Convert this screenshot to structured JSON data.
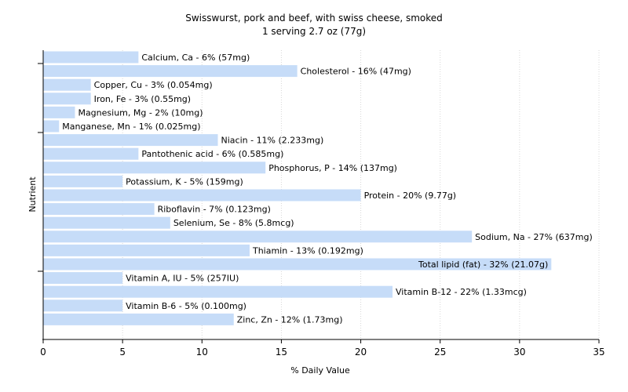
{
  "chart_data": {
    "type": "bar",
    "orientation": "horizontal",
    "title": "Swisswurst, pork and beef, with swiss cheese, smoked",
    "subtitle": "1 serving 2.7 oz (77g)",
    "xlabel": "% Daily Value",
    "ylabel": "Nutrient",
    "xlim": [
      0,
      35
    ],
    "xticks": [
      0,
      5,
      10,
      15,
      20,
      25,
      30,
      35
    ],
    "grid": true,
    "bar_color": "#c6dcf8",
    "categories": [
      "Calcium, Ca",
      "Cholesterol",
      "Copper, Cu",
      "Iron, Fe",
      "Magnesium, Mg",
      "Manganese, Mn",
      "Niacin",
      "Pantothenic acid",
      "Phosphorus, P",
      "Potassium, K",
      "Protein",
      "Riboflavin",
      "Selenium, Se",
      "Sodium, Na",
      "Thiamin",
      "Total lipid (fat)",
      "Vitamin A, IU",
      "Vitamin B-12",
      "Vitamin B-6",
      "Zinc, Zn"
    ],
    "values": [
      6,
      16,
      3,
      3,
      2,
      1,
      11,
      6,
      14,
      5,
      20,
      7,
      8,
      27,
      13,
      32,
      5,
      22,
      5,
      12
    ],
    "labels": [
      "Calcium, Ca - 6% (57mg)",
      "Cholesterol - 16% (47mg)",
      "Copper, Cu - 3% (0.054mg)",
      "Iron, Fe - 3% (0.55mg)",
      "Magnesium, Mg - 2% (10mg)",
      "Manganese, Mn - 1% (0.025mg)",
      "Niacin - 11% (2.233mg)",
      "Pantothenic acid - 6% (0.585mg)",
      "Phosphorus, P - 14% (137mg)",
      "Potassium, K - 5% (159mg)",
      "Protein - 20% (9.77g)",
      "Riboflavin - 7% (0.123mg)",
      "Selenium, Se - 8% (5.8mcg)",
      "Sodium, Na - 27% (637mg)",
      "Thiamin - 13% (0.192mg)",
      "Total lipid (fat) - 32% (21.07g)",
      "Vitamin A, IU - 5% (257IU)",
      "Vitamin B-12 - 22% (1.33mcg)",
      "Vitamin B-6 - 5% (0.100mg)",
      "Zinc, Zn - 12% (1.73mg)"
    ]
  }
}
